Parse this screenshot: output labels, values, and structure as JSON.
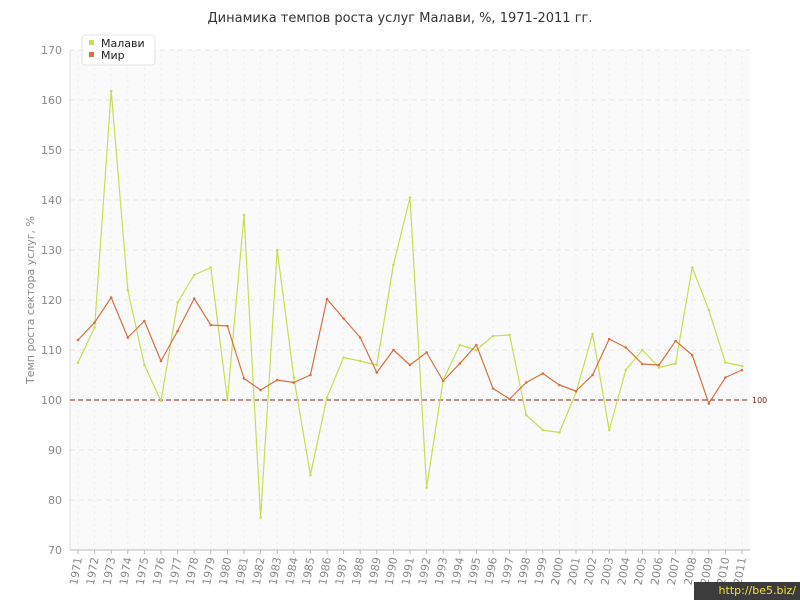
{
  "chart_data": {
    "type": "line",
    "title": "Динамика темпов роста услуг Малави, %, 1971-2011 гг.",
    "xlabel": "",
    "ylabel": "Темп роста сектора услуг, %",
    "ylim": [
      70,
      170
    ],
    "yticks": [
      70,
      80,
      90,
      100,
      110,
      120,
      130,
      140,
      150,
      160,
      170
    ],
    "x": [
      "1971",
      "1972",
      "1973",
      "1974",
      "1975",
      "1976",
      "1977",
      "1978",
      "1979",
      "1980",
      "1981",
      "1982",
      "1983",
      "1984",
      "1985",
      "1986",
      "1987",
      "1988",
      "1989",
      "1990",
      "1991",
      "1992",
      "1993",
      "1994",
      "1995",
      "1996",
      "1997",
      "1998",
      "1999",
      "2000",
      "2001",
      "2002",
      "2003",
      "2004",
      "2005",
      "2006",
      "2007",
      "2008",
      "2009",
      "2010",
      "2011"
    ],
    "series": [
      {
        "name": "Малави",
        "color": "#c6df52",
        "values": [
          107.5,
          114.5,
          161.8,
          122.0,
          107.0,
          99.8,
          119.5,
          125.0,
          126.5,
          100.0,
          137.0,
          76.5,
          130.0,
          104.5,
          85.0,
          100.5,
          108.5,
          107.8,
          107.0,
          127.0,
          140.5,
          82.5,
          104.0,
          111.0,
          110.0,
          112.8,
          113.0,
          97.0,
          94.0,
          93.5,
          101.5,
          113.2,
          94.0,
          106.0,
          110.0,
          106.5,
          107.3,
          126.5,
          118.0,
          107.5,
          106.8
        ]
      },
      {
        "name": "Мир",
        "color": "#d9703f",
        "values": [
          112.0,
          115.5,
          120.5,
          112.5,
          115.8,
          107.8,
          113.8,
          120.3,
          115.0,
          114.8,
          104.3,
          102.0,
          104.0,
          103.5,
          105.0,
          120.2,
          116.3,
          112.5,
          105.5,
          110.0,
          107.0,
          109.5,
          103.8,
          107.3,
          111.0,
          102.3,
          100.2,
          103.5,
          105.3,
          103.0,
          101.8,
          105.0,
          112.2,
          110.5,
          107.2,
          107.0,
          111.8,
          109.0,
          99.3,
          104.5,
          106.0
        ]
      }
    ],
    "reference_line": {
      "value": 100,
      "label": "100",
      "color": "#8b2020"
    },
    "grid": true,
    "legend": "top-left"
  },
  "watermark": "http://be5.biz/"
}
